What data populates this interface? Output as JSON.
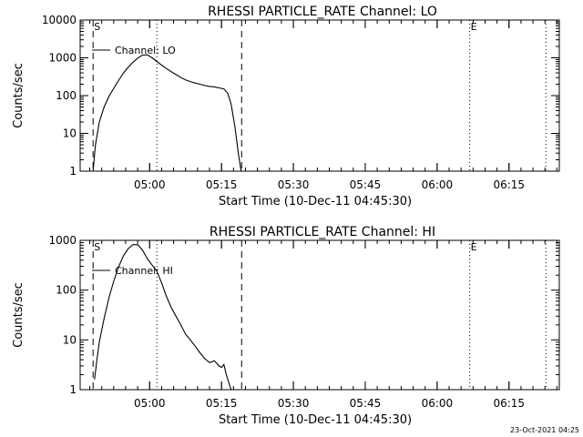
{
  "chart_data": [
    {
      "type": "line",
      "title": "RHESSI PARTICLE_RATE Channel: LO",
      "xlabel": "Start Time (10-Dec-11 04:45:30)",
      "ylabel": "Counts/sec",
      "x_unit": "minutes after 04:45:30",
      "xlim": [
        0,
        100
      ],
      "ylim": [
        1,
        10000
      ],
      "yscale": "log",
      "grid": false,
      "legend_position": "top-left",
      "xticks": [
        {
          "value": 14.5,
          "label": "05:00"
        },
        {
          "value": 29.5,
          "label": "05:15"
        },
        {
          "value": 44.5,
          "label": "05:30"
        },
        {
          "value": 59.5,
          "label": "05:45"
        },
        {
          "value": 74.5,
          "label": "06:00"
        },
        {
          "value": 89.5,
          "label": "06:15"
        }
      ],
      "yticks": [
        {
          "value": 1,
          "label": "1"
        },
        {
          "value": 10,
          "label": "10"
        },
        {
          "value": 100,
          "label": "100"
        },
        {
          "value": 1000,
          "label": "1000"
        },
        {
          "value": 10000,
          "label": "10000"
        }
      ],
      "vlines": [
        {
          "x": 2.7,
          "style": "dashed",
          "label": "S"
        },
        {
          "x": 16.0,
          "style": "dotted",
          "label": ""
        },
        {
          "x": 33.7,
          "style": "dashed",
          "label": ""
        },
        {
          "x": 81.3,
          "style": "dotted",
          "label": "E"
        },
        {
          "x": 97.2,
          "style": "dotted",
          "label": ""
        }
      ],
      "series": [
        {
          "name": "Channel: LO",
          "x": [
            2.7,
            3.2,
            4,
            5,
            6,
            7,
            8,
            9,
            10,
            11,
            12,
            13,
            14,
            15,
            16,
            17,
            18,
            19,
            20,
            21,
            22,
            23,
            24,
            25,
            26,
            27,
            28,
            29,
            30,
            30.8,
            31.5,
            32.3,
            33,
            33.6
          ],
          "y": [
            1,
            5,
            20,
            50,
            95,
            155,
            250,
            390,
            560,
            760,
            980,
            1180,
            1200,
            1000,
            800,
            640,
            520,
            430,
            360,
            300,
            260,
            235,
            215,
            200,
            185,
            175,
            170,
            160,
            150,
            115,
            60,
            15,
            3,
            1
          ]
        }
      ]
    },
    {
      "type": "line",
      "title": "RHESSI PARTICLE_RATE Channel: HI",
      "xlabel": "Start Time (10-Dec-11 04:45:30)",
      "ylabel": "Counts/sec",
      "x_unit": "minutes after 04:45:30",
      "xlim": [
        0,
        100
      ],
      "ylim": [
        1,
        1000
      ],
      "yscale": "log",
      "grid": false,
      "legend_position": "top-left",
      "xticks": [
        {
          "value": 14.5,
          "label": "05:00"
        },
        {
          "value": 29.5,
          "label": "05:15"
        },
        {
          "value": 44.5,
          "label": "05:30"
        },
        {
          "value": 59.5,
          "label": "05:45"
        },
        {
          "value": 74.5,
          "label": "06:00"
        },
        {
          "value": 89.5,
          "label": "06:15"
        }
      ],
      "yticks": [
        {
          "value": 1,
          "label": "1"
        },
        {
          "value": 10,
          "label": "10"
        },
        {
          "value": 100,
          "label": "100"
        },
        {
          "value": 1000,
          "label": "1000"
        }
      ],
      "vlines": [
        {
          "x": 2.7,
          "style": "dashed",
          "label": "S"
        },
        {
          "x": 16.0,
          "style": "dotted",
          "label": ""
        },
        {
          "x": 33.7,
          "style": "dashed",
          "label": ""
        },
        {
          "x": 81.3,
          "style": "dotted",
          "label": "E"
        },
        {
          "x": 97.2,
          "style": "dotted",
          "label": ""
        }
      ],
      "series": [
        {
          "name": "Channel: HI",
          "x": [
            3,
            3.5,
            4,
            5,
            6,
            7,
            8,
            9,
            10,
            11,
            12,
            13,
            14,
            15,
            16,
            17,
            18,
            19,
            20,
            21,
            22,
            23,
            24,
            25,
            26,
            27,
            28,
            29,
            29.5,
            30,
            30.5,
            31,
            31.5
          ],
          "y": [
            1.6,
            4,
            9,
            27,
            70,
            150,
            290,
            480,
            680,
            820,
            820,
            640,
            430,
            320,
            240,
            140,
            75,
            45,
            30,
            20,
            13,
            10,
            7.5,
            5.5,
            4.2,
            3.5,
            3.8,
            3,
            2.8,
            3.2,
            2,
            1.4,
            1
          ]
        }
      ]
    }
  ],
  "footer": {
    "timestamp": "23-Oct-2021 04:25"
  }
}
